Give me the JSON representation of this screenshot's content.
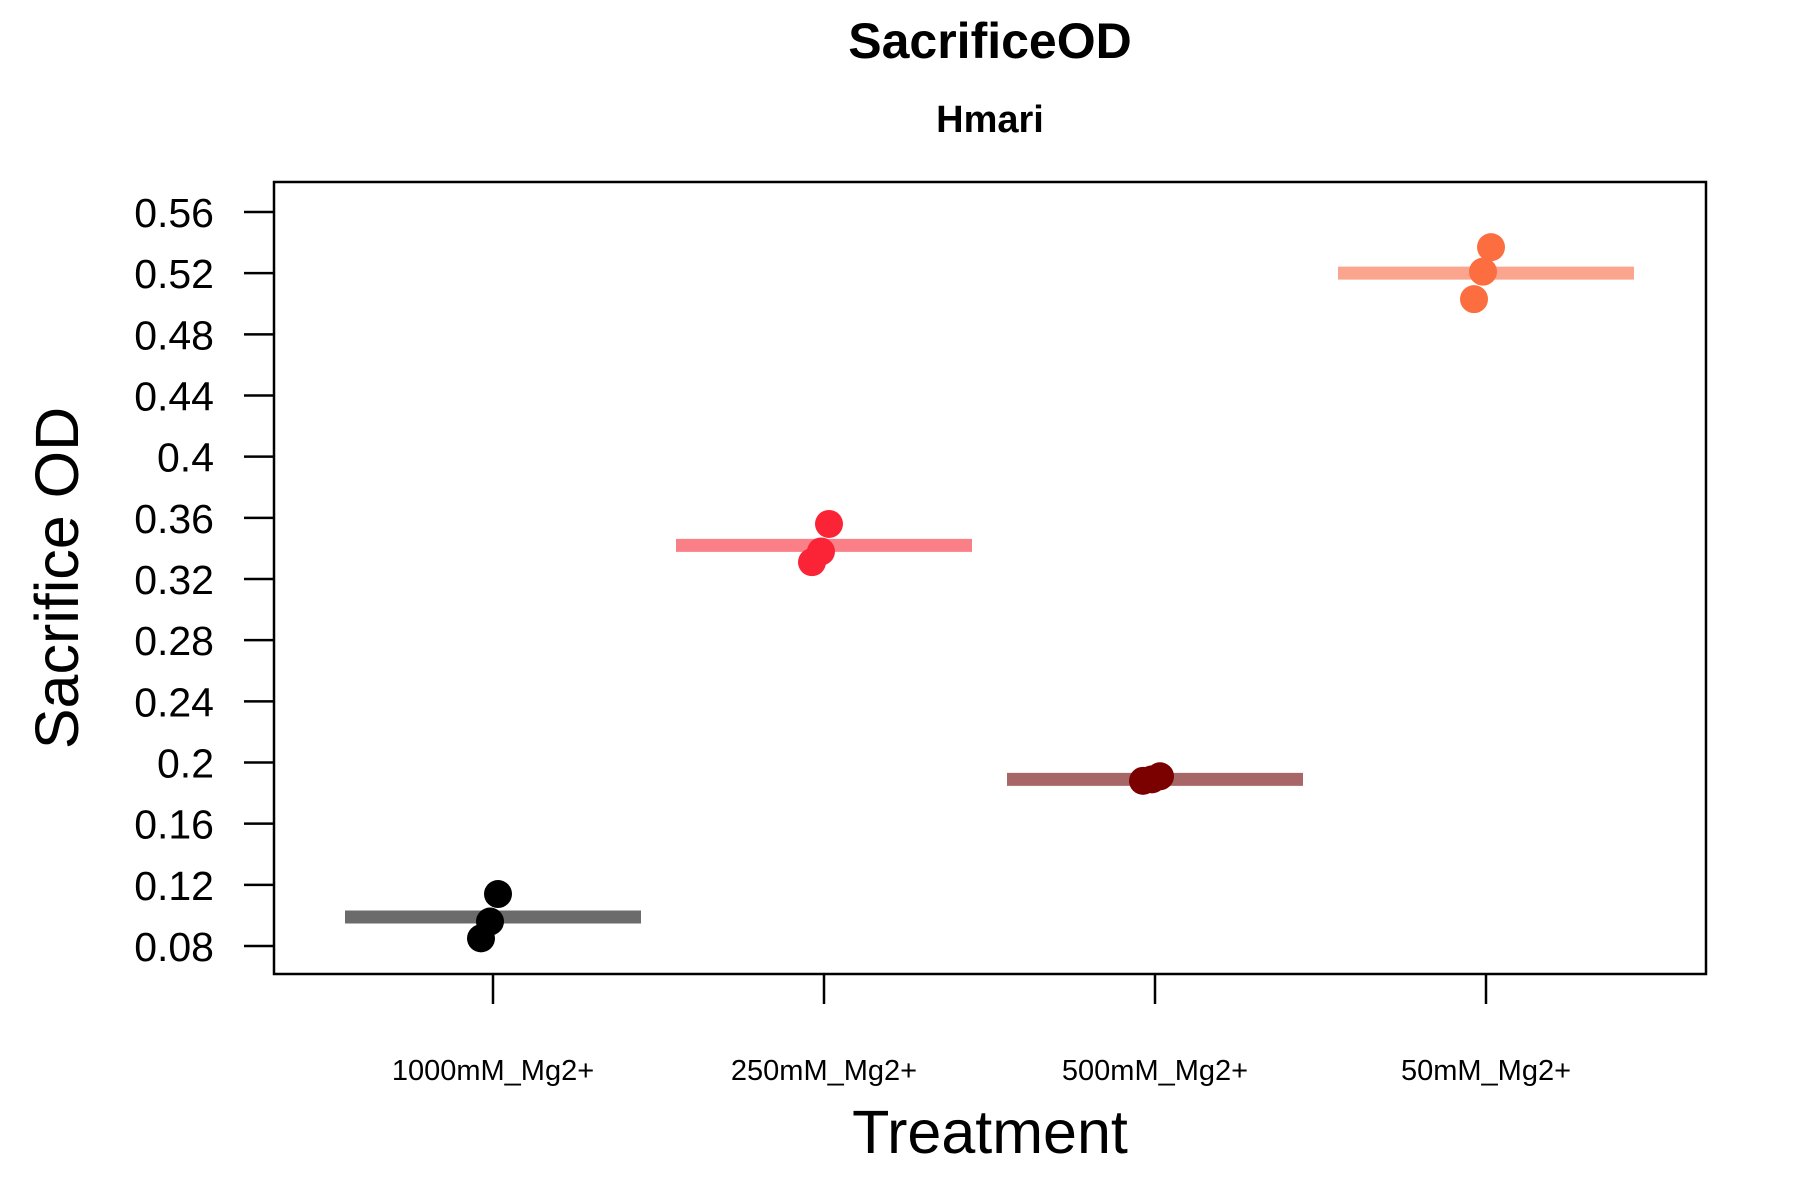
{
  "chart_data": {
    "type": "scatter",
    "title": "SacrificeOD",
    "subtitle": "Hmari",
    "xlabel": "Treatment",
    "ylabel": "Sacrifice OD",
    "categories": [
      "1000mM_Mg2+",
      "250mM_Mg2+",
      "500mM_Mg2+",
      "50mM_Mg2+"
    ],
    "ylim": [
      0.06,
      0.58
    ],
    "yticks": [
      0.08,
      0.12,
      0.16,
      0.2,
      0.24,
      0.28,
      0.32,
      0.36,
      0.4,
      0.44,
      0.48,
      0.52,
      0.56
    ],
    "ytick_labels": [
      "0.08",
      "0.12",
      "0.16",
      "0.2",
      "0.24",
      "0.28",
      "0.32",
      "0.36",
      "0.4",
      "0.44",
      "0.48",
      "0.52",
      "0.56"
    ],
    "grid": false,
    "series": [
      {
        "category": "1000mM_Mg2+",
        "mean": 0.099,
        "points": [
          0.085,
          0.096,
          0.114
        ],
        "point_color": "#000000",
        "mean_color": "#6b6b6b"
      },
      {
        "category": "250mM_Mg2+",
        "mean": 0.342,
        "points": [
          0.331,
          0.338,
          0.356
        ],
        "point_color": "#fb2336",
        "mean_color": "#fb7f86"
      },
      {
        "category": "500mM_Mg2+",
        "mean": 0.189,
        "points": [
          0.188,
          0.189,
          0.191
        ],
        "point_color": "#7b0000",
        "mean_color": "#a76767"
      },
      {
        "category": "50mM_Mg2+",
        "mean": 0.52,
        "points": [
          0.503,
          0.521,
          0.537
        ],
        "point_color": "#fc6d40",
        "mean_color": "#fba58e"
      }
    ]
  }
}
